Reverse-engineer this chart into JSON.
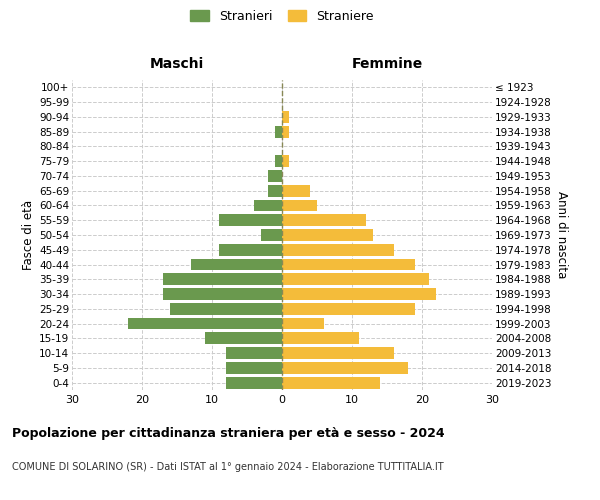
{
  "age_groups": [
    "0-4",
    "5-9",
    "10-14",
    "15-19",
    "20-24",
    "25-29",
    "30-34",
    "35-39",
    "40-44",
    "45-49",
    "50-54",
    "55-59",
    "60-64",
    "65-69",
    "70-74",
    "75-79",
    "80-84",
    "85-89",
    "90-94",
    "95-99",
    "100+"
  ],
  "birth_years": [
    "2019-2023",
    "2014-2018",
    "2009-2013",
    "2004-2008",
    "1999-2003",
    "1994-1998",
    "1989-1993",
    "1984-1988",
    "1979-1983",
    "1974-1978",
    "1969-1973",
    "1964-1968",
    "1959-1963",
    "1954-1958",
    "1949-1953",
    "1944-1948",
    "1939-1943",
    "1934-1938",
    "1929-1933",
    "1924-1928",
    "≤ 1923"
  ],
  "males": [
    8,
    8,
    8,
    11,
    22,
    16,
    17,
    17,
    13,
    9,
    3,
    9,
    4,
    2,
    2,
    1,
    0,
    1,
    0,
    0,
    0
  ],
  "females": [
    14,
    18,
    16,
    11,
    6,
    19,
    22,
    21,
    19,
    16,
    13,
    12,
    5,
    4,
    0,
    1,
    0,
    1,
    1,
    0,
    0
  ],
  "male_color": "#6a994e",
  "female_color": "#f4bc3a",
  "background_color": "#ffffff",
  "grid_color": "#cccccc",
  "center_line_color": "#888855",
  "title": "Popolazione per cittadinanza straniera per età e sesso - 2024",
  "subtitle": "COMUNE DI SOLARINO (SR) - Dati ISTAT al 1° gennaio 2024 - Elaborazione TUTTITALIA.IT",
  "ylabel_left": "Fasce di età",
  "ylabel_right": "Anni di nascita",
  "xlabel_left": "Maschi",
  "xlabel_right": "Femmine",
  "legend_males": "Stranieri",
  "legend_females": "Straniere",
  "xlim": 30
}
